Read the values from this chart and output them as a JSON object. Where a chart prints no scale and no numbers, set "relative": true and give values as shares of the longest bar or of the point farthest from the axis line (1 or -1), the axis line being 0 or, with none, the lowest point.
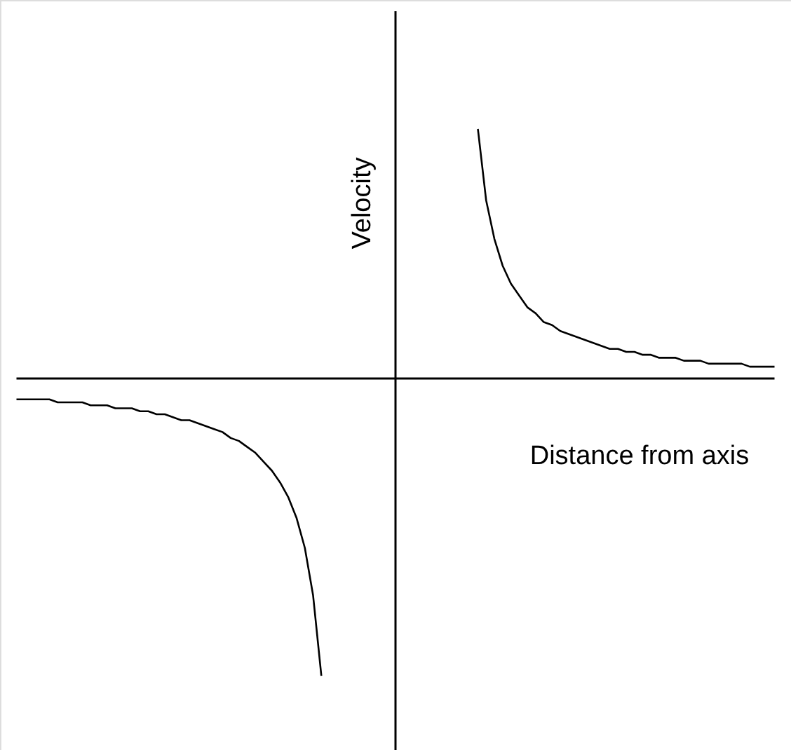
{
  "chart_data": {
    "type": "line",
    "relative": true,
    "xlabel": "Distance from axis",
    "ylabel": "Velocity",
    "marker": "none",
    "line_style": "solid",
    "categories": [
      null,
      null,
      null,
      null,
      null,
      null,
      null,
      null,
      null,
      null,
      null,
      null,
      null,
      null,
      null,
      null,
      null,
      null,
      null,
      null,
      null,
      null,
      null,
      null,
      null,
      null,
      null,
      null,
      null,
      null,
      null,
      null,
      null,
      null,
      null,
      null,
      null,
      null,
      null,
      null,
      null,
      null,
      null,
      null,
      null,
      null,
      null,
      null,
      null,
      null,
      null,
      null,
      null,
      null,
      null,
      null,
      null,
      null,
      null,
      null,
      null,
      null,
      null,
      null,
      null,
      null,
      null,
      null,
      null,
      null,
      null,
      null,
      null,
      null,
      null,
      null,
      null,
      null,
      null,
      null,
      null,
      null,
      null,
      null,
      null,
      null,
      null,
      null,
      null,
      null,
      null,
      null,
      null
    ],
    "series": [
      {
        "color": "#000000",
        "values": [
          -0.07,
          -0.07,
          -0.07,
          -0.07,
          -0.07,
          -0.08,
          -0.08,
          -0.08,
          -0.08,
          -0.09,
          -0.09,
          -0.09,
          -0.1,
          -0.1,
          -0.1,
          -0.11,
          -0.11,
          -0.12,
          -0.12,
          -0.13,
          -0.14,
          -0.14,
          -0.15,
          -0.16,
          -0.17,
          -0.18,
          -0.2,
          -0.21,
          -0.23,
          -0.25,
          -0.28,
          -0.31,
          -0.35,
          -0.4,
          -0.47,
          -0.57,
          -0.73,
          -1,
          null,
          null,
          null,
          null,
          null,
          null,
          null,
          null,
          null,
          null,
          null,
          null,
          null,
          null,
          null,
          null,
          null,
          null,
          0.84,
          0.6,
          0.47,
          0.38,
          0.32,
          0.28,
          0.24,
          0.22,
          0.19,
          0.18,
          0.16,
          0.15,
          0.14,
          0.13,
          0.12,
          0.11,
          0.1,
          0.1,
          0.09,
          0.09,
          0.08,
          0.08,
          0.07,
          0.07,
          0.07,
          0.06,
          0.06,
          0.06,
          0.05,
          0.05,
          0.05,
          0.05,
          0.05,
          0.04,
          0.04,
          0.04,
          0.04
        ]
      }
    ]
  }
}
